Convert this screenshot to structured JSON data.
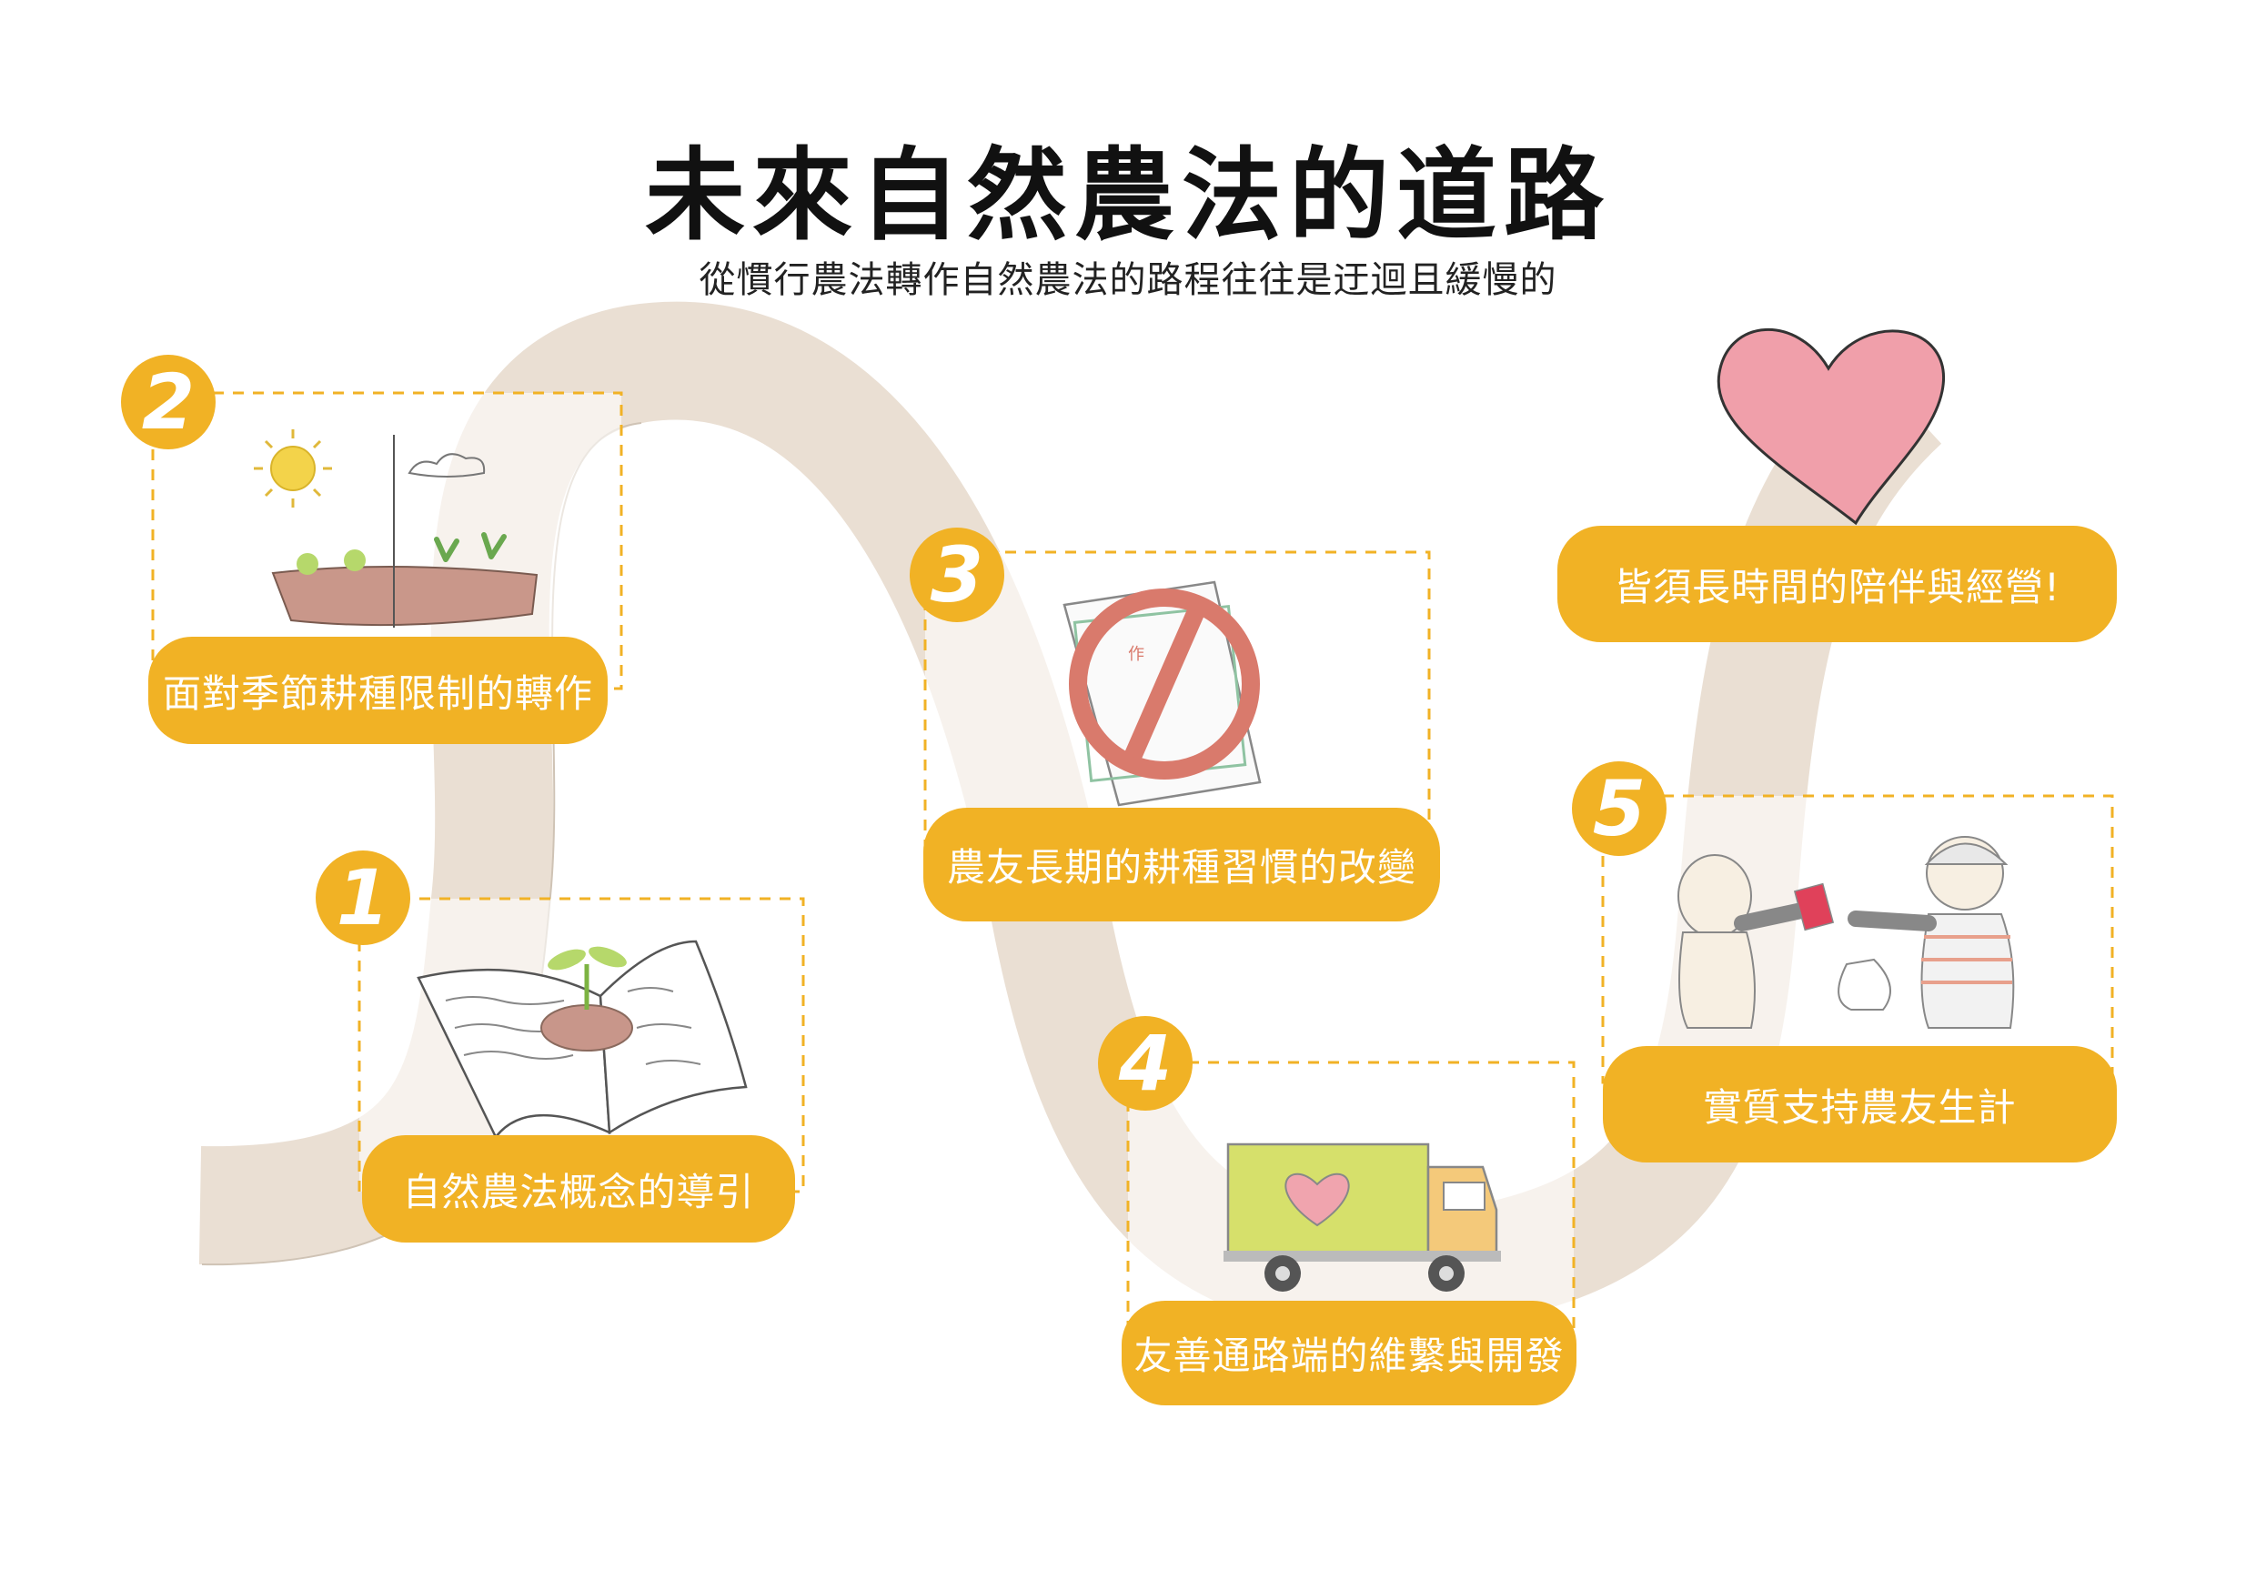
{
  "title": "未來自然農法的道路",
  "subtitle": "從慣行農法轉作自然農法的路程往往是迂迴且緩慢的",
  "colors": {
    "accent": "#f1b225",
    "road": "#eadfd3",
    "heart": "#f09faa",
    "text": "#111111"
  },
  "steps": [
    {
      "number": "1",
      "label": "自然農法概念的導引",
      "icon": "book-sprout-icon"
    },
    {
      "number": "2",
      "label": "面對季節耕種限制的轉作",
      "icon": "seasons-crop-icon"
    },
    {
      "number": "3",
      "label": "農友長期的耕種習慣的改變",
      "icon": "prohibited-paper-icon"
    },
    {
      "number": "4",
      "label": "友善通路端的維繫與開發",
      "icon": "delivery-truck-icon"
    },
    {
      "number": "5",
      "label": "實質支持農友生計",
      "icon": "payment-exchange-icon"
    }
  ],
  "goal": {
    "label": "皆須長時間的陪伴與經營!",
    "icon": "heart-icon"
  },
  "paper_mark": "作"
}
